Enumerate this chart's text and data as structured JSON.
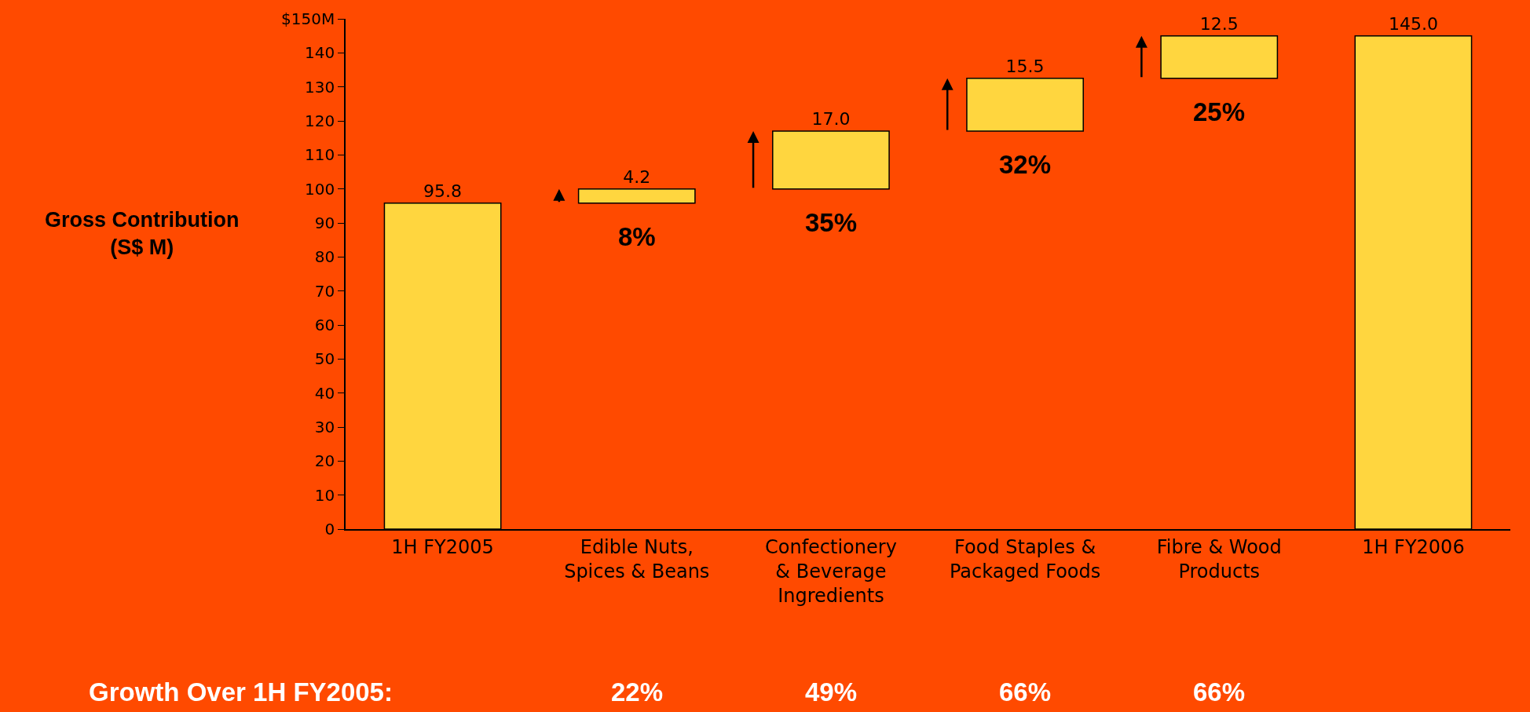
{
  "chart_data": {
    "type": "bar",
    "ylabel": "Gross Contribution\n(S$ M)",
    "categories": [
      "1H FY2005",
      "Edible Nuts,\nSpices & Beans",
      "Confectionery\n& Beverage\nIngredients",
      "Food Staples &\nPackaged Foods",
      "Fibre & Wood\nProducts",
      "1H FY2006"
    ],
    "values": [
      95.8,
      4.2,
      17.0,
      15.5,
      12.5,
      145.0
    ],
    "base": [
      0,
      95.8,
      100.0,
      117.0,
      132.5,
      0
    ],
    "value_labels": [
      "95.8",
      "4.2",
      "17.0",
      "15.5",
      "12.5",
      "145.0"
    ],
    "color": "#ffd63f",
    "ylim": [
      0,
      150
    ],
    "yticks": [
      0,
      10,
      20,
      30,
      40,
      50,
      60,
      70,
      80,
      90,
      100,
      110,
      120,
      130,
      140,
      {
        "value": 150,
        "label": "$150M"
      }
    ],
    "grid": false,
    "legend": false,
    "annotations": [
      "8%",
      "35%",
      "32%",
      "25%",
      "Growth Over 1H FY2005:",
      "22%",
      "49%",
      "66%",
      "66%"
    ]
  }
}
